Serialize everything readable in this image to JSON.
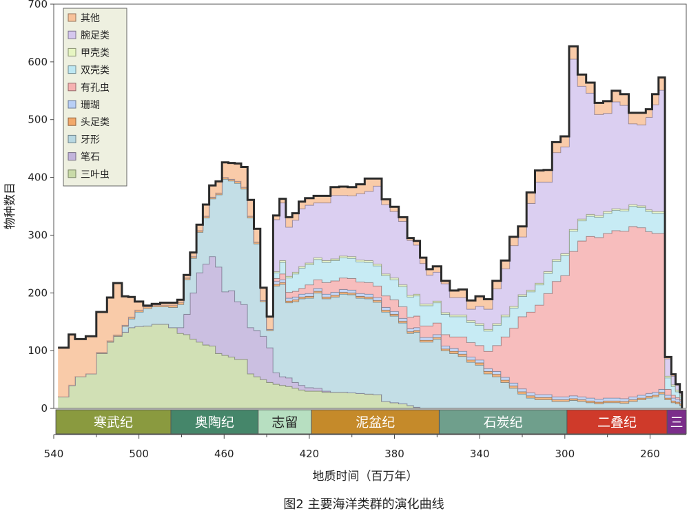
{
  "chart_data": {
    "type": "area",
    "caption": "图2  主要海洋类群的演化曲线",
    "xlabel": "地质时间（百万年）",
    "ylabel": "物种数目",
    "xlim": [
      540,
      243
    ],
    "ylim": [
      0,
      700
    ],
    "x_ticks": [
      540,
      500,
      460,
      420,
      380,
      340,
      300,
      260
    ],
    "y_ticks": [
      0,
      100,
      200,
      300,
      400,
      500,
      600,
      700
    ],
    "legend_position": "top-left",
    "x": [
      538,
      533,
      530,
      525,
      520,
      515,
      512,
      508,
      505,
      502,
      498,
      494,
      490,
      486,
      482,
      479,
      476,
      473,
      470,
      467,
      464,
      461,
      458,
      455,
      452,
      449,
      446,
      443,
      440,
      437,
      434,
      431,
      428,
      425,
      422,
      418,
      414,
      410,
      406,
      402,
      398,
      394,
      390,
      386,
      382,
      378,
      374,
      371,
      368,
      365,
      362,
      358,
      354,
      350,
      346,
      342,
      338,
      334,
      330,
      326,
      322,
      318,
      314,
      310,
      306,
      302,
      298,
      294,
      290,
      286,
      282,
      278,
      274,
      270,
      266,
      262,
      259,
      256,
      253,
      250,
      248,
      246,
      245
    ],
    "series": [
      {
        "name": "三叶虫",
        "color": "#c9dba8",
        "values": [
          20,
          40,
          55,
          60,
          95,
          115,
          125,
          132,
          140,
          142,
          143,
          146,
          146,
          140,
          130,
          128,
          120,
          115,
          110,
          108,
          95,
          92,
          89,
          85,
          85,
          60,
          55,
          50,
          45,
          42,
          40,
          38,
          35,
          32,
          30,
          30,
          28,
          28,
          28,
          27,
          26,
          25,
          24,
          12,
          10,
          8,
          5,
          2,
          0,
          0,
          0,
          0,
          0,
          0,
          0,
          0,
          0,
          0,
          0,
          0,
          0,
          0,
          0,
          0,
          0,
          0,
          0,
          0,
          0,
          0,
          0,
          0,
          0,
          0,
          0,
          0,
          0,
          0,
          0,
          0,
          0,
          0,
          0
        ]
      },
      {
        "name": "笔石",
        "color": "#c2b4dc",
        "values": [
          0,
          0,
          0,
          0,
          0,
          0,
          0,
          0,
          0,
          0,
          0,
          0,
          0,
          0,
          10,
          35,
          80,
          120,
          140,
          155,
          150,
          110,
          115,
          100,
          95,
          80,
          80,
          75,
          60,
          20,
          15,
          15,
          10,
          8,
          6,
          5,
          2,
          0,
          0,
          0,
          0,
          0,
          0,
          0,
          0,
          0,
          0,
          0,
          0,
          0,
          0,
          0,
          0,
          0,
          0,
          0,
          0,
          0,
          0,
          0,
          0,
          0,
          0,
          0,
          0,
          0,
          0,
          0,
          0,
          0,
          0,
          0,
          0,
          0,
          0,
          0,
          0,
          0,
          0,
          0,
          0,
          0,
          0
        ]
      },
      {
        "name": "牙形",
        "color": "#b8d8e2",
        "values": [
          0,
          0,
          0,
          0,
          0,
          0,
          0,
          10,
          15,
          25,
          30,
          30,
          30,
          35,
          40,
          60,
          60,
          70,
          80,
          100,
          125,
          195,
          190,
          205,
          200,
          190,
          150,
          60,
          30,
          150,
          160,
          130,
          140,
          150,
          155,
          165,
          160,
          165,
          170,
          170,
          165,
          165,
          160,
          155,
          150,
          140,
          125,
          130,
          115,
          115,
          120,
          100,
          95,
          90,
          80,
          75,
          60,
          55,
          45,
          35,
          25,
          18,
          15,
          15,
          12,
          12,
          14,
          12,
          10,
          8,
          10,
          10,
          9,
          12,
          15,
          18,
          20,
          25,
          15,
          10,
          8,
          5,
          0
        ]
      },
      {
        "name": "头足类",
        "color": "#f2a96b",
        "values": [
          0,
          0,
          0,
          0,
          2,
          2,
          2,
          2,
          3,
          3,
          3,
          3,
          3,
          4,
          4,
          3,
          3,
          3,
          3,
          3,
          3,
          3,
          3,
          3,
          3,
          3,
          3,
          2,
          2,
          3,
          3,
          3,
          3,
          3,
          3,
          3,
          3,
          3,
          3,
          3,
          3,
          3,
          3,
          3,
          3,
          3,
          3,
          3,
          3,
          3,
          3,
          3,
          4,
          4,
          4,
          4,
          4,
          4,
          4,
          4,
          4,
          4,
          4,
          4,
          3,
          3,
          3,
          3,
          3,
          3,
          3,
          3,
          3,
          3,
          3,
          3,
          3,
          3,
          3,
          3,
          3,
          3,
          0
        ]
      },
      {
        "name": "珊瑚",
        "color": "#b8cff6",
        "values": [
          0,
          0,
          0,
          0,
          0,
          0,
          0,
          0,
          0,
          0,
          0,
          0,
          0,
          0,
          0,
          0,
          0,
          0,
          0,
          0,
          0,
          0,
          0,
          0,
          0,
          0,
          0,
          0,
          0,
          5,
          5,
          5,
          5,
          5,
          5,
          5,
          5,
          5,
          5,
          5,
          5,
          5,
          5,
          5,
          5,
          5,
          5,
          5,
          5,
          5,
          5,
          5,
          5,
          5,
          5,
          5,
          5,
          5,
          5,
          5,
          5,
          5,
          5,
          5,
          5,
          5,
          5,
          5,
          5,
          5,
          5,
          5,
          5,
          5,
          5,
          5,
          5,
          5,
          5,
          5,
          5,
          5,
          0
        ]
      },
      {
        "name": "有孔虫",
        "color": "#f6b1b1",
        "values": [
          0,
          0,
          0,
          0,
          0,
          0,
          0,
          0,
          0,
          0,
          0,
          0,
          0,
          0,
          0,
          0,
          0,
          0,
          0,
          0,
          0,
          0,
          0,
          0,
          0,
          0,
          0,
          0,
          0,
          5,
          10,
          10,
          10,
          10,
          15,
          15,
          20,
          20,
          20,
          20,
          20,
          20,
          20,
          20,
          20,
          20,
          20,
          20,
          20,
          20,
          20,
          20,
          20,
          25,
          25,
          25,
          30,
          45,
          70,
          95,
          125,
          140,
          155,
          175,
          200,
          210,
          250,
          270,
          280,
          280,
          285,
          290,
          290,
          295,
          290,
          280,
          275,
          270,
          10,
          5,
          3,
          2,
          0
        ]
      },
      {
        "name": "双壳类",
        "color": "#bde7f2",
        "values": [
          0,
          0,
          0,
          0,
          0,
          0,
          0,
          0,
          0,
          0,
          0,
          0,
          0,
          0,
          0,
          0,
          0,
          0,
          0,
          0,
          0,
          0,
          0,
          0,
          0,
          0,
          0,
          0,
          0,
          10,
          20,
          25,
          30,
          35,
          35,
          35,
          35,
          35,
          35,
          35,
          35,
          35,
          35,
          35,
          35,
          35,
          35,
          35,
          35,
          35,
          35,
          35,
          35,
          35,
          35,
          35,
          35,
          35,
          35,
          35,
          35,
          35,
          35,
          35,
          35,
          35,
          35,
          35,
          35,
          35,
          35,
          35,
          35,
          35,
          35,
          35,
          35,
          35,
          20,
          15,
          10,
          5,
          0
        ]
      },
      {
        "name": "甲壳类",
        "color": "#e6f5c2",
        "values": [
          0,
          0,
          0,
          0,
          0,
          0,
          0,
          0,
          0,
          0,
          0,
          0,
          0,
          0,
          0,
          0,
          0,
          0,
          0,
          0,
          0,
          0,
          0,
          0,
          0,
          0,
          0,
          0,
          0,
          2,
          3,
          3,
          3,
          3,
          3,
          3,
          3,
          3,
          3,
          3,
          3,
          3,
          3,
          3,
          3,
          3,
          3,
          3,
          3,
          3,
          3,
          3,
          3,
          3,
          3,
          3,
          3,
          3,
          3,
          3,
          3,
          3,
          3,
          3,
          3,
          3,
          3,
          3,
          3,
          3,
          3,
          3,
          3,
          3,
          3,
          3,
          3,
          3,
          3,
          3,
          3,
          3,
          0
        ]
      },
      {
        "name": "腕足类",
        "color": "#d5c7ee",
        "values": [
          0,
          0,
          0,
          0,
          0,
          0,
          0,
          0,
          0,
          0,
          0,
          0,
          0,
          0,
          0,
          0,
          0,
          0,
          0,
          0,
          0,
          0,
          0,
          0,
          0,
          0,
          0,
          0,
          0,
          90,
          100,
          85,
          90,
          100,
          100,
          95,
          100,
          110,
          105,
          105,
          115,
          120,
          135,
          120,
          115,
          110,
          95,
          85,
          70,
          50,
          50,
          50,
          30,
          30,
          20,
          30,
          35,
          60,
          80,
          105,
          100,
          150,
          175,
          155,
          185,
          185,
          295,
          230,
          210,
          175,
          170,
          185,
          180,
          140,
          140,
          160,
          185,
          210,
          30,
          15,
          8,
          3,
          0
        ]
      },
      {
        "name": "其他",
        "color": "#f8c29a",
        "values": [
          85,
          88,
          65,
          65,
          70,
          75,
          90,
          50,
          35,
          15,
          2,
          2,
          4,
          4,
          4,
          5,
          7,
          10,
          20,
          20,
          20,
          26,
          28,
          31,
          35,
          28,
          23,
          22,
          22,
          7,
          7,
          17,
          12,
          12,
          12,
          12,
          12,
          14,
          15,
          15,
          16,
          22,
          13,
          9,
          8,
          7,
          4,
          7,
          10,
          10,
          10,
          5,
          12,
          14,
          15,
          17,
          17,
          14,
          14,
          15,
          18,
          19,
          20,
          21,
          18,
          18,
          22,
          20,
          18,
          20,
          21,
          19,
          19,
          19,
          21,
          14,
          18,
          22,
          3,
          3,
          2,
          2,
          0
        ]
      }
    ],
    "periods": [
      {
        "name": "寒武纪",
        "start": 539,
        "end": 485,
        "color": "#8a9a3f"
      },
      {
        "name": "奥陶纪",
        "start": 485,
        "end": 444,
        "color": "#45866a"
      },
      {
        "name": "志留",
        "start": 444,
        "end": 419,
        "color": "#b7dfc1"
      },
      {
        "name": "泥盆纪",
        "start": 419,
        "end": 359,
        "color": "#c58a2a"
      },
      {
        "name": "石炭纪",
        "start": 359,
        "end": 299,
        "color": "#6f9f8c"
      },
      {
        "name": "二叠纪",
        "start": 299,
        "end": 252,
        "color": "#cf3a2a"
      },
      {
        "name": "三",
        "start": 252,
        "end": 243,
        "color": "#7b2d8a"
      }
    ]
  }
}
